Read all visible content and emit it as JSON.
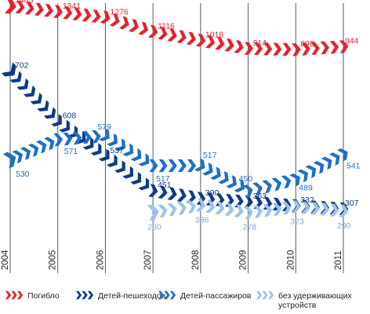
{
  "chart_data": {
    "type": "line",
    "title": "",
    "xlabel": "",
    "ylabel": "",
    "x": [
      "2004",
      "2005",
      "2006",
      "2007",
      "2008",
      "2009",
      "2010",
      "2011"
    ],
    "series": [
      {
        "name": "Погибло",
        "key": "killed",
        "color": "#e3222b",
        "label_color": "#e3222b",
        "values": [
          1405,
          1341,
          1276,
          1116,
          1018,
          914,
          898,
          944
        ]
      },
      {
        "name": "Детей-пешеходов",
        "key": "pedestrians",
        "color": "#0f3a86",
        "label_color": "#0f3a86",
        "values": [
          702,
          608,
          537,
          451,
          390,
          363,
          332,
          307
        ]
      },
      {
        "name": "Детей-пассажиров",
        "key": "passengers",
        "color": "#1d6fc4",
        "label_color": "#1d6fc4",
        "values": [
          530,
          571,
          579,
          517,
          517,
          450,
          489,
          541
        ]
      },
      {
        "name": "без удерживающих устройств",
        "key": "unrestrained",
        "color": "#9ec3ea",
        "label_color": "#7fa9d8",
        "values": [
          null,
          null,
          null,
          280,
          336,
          278,
          323,
          290
        ]
      }
    ],
    "legend_position": "bottom",
    "grid": "vertical lines at each year",
    "marker": "chevron arrows"
  }
}
